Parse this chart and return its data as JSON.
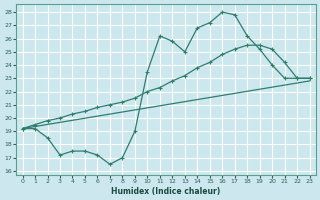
{
  "xlabel": "Humidex (Indice chaleur)",
  "bg_color": "#cce8ee",
  "line_color": "#2e7d6e",
  "grid_color": "#ffffff",
  "xlim": [
    -0.5,
    23.5
  ],
  "ylim": [
    15.7,
    28.6
  ],
  "yticks": [
    16,
    17,
    18,
    19,
    20,
    21,
    22,
    23,
    24,
    25,
    26,
    27,
    28
  ],
  "xticks": [
    0,
    1,
    2,
    3,
    4,
    5,
    6,
    7,
    8,
    9,
    10,
    11,
    12,
    13,
    14,
    15,
    16,
    17,
    18,
    19,
    20,
    21,
    22,
    23
  ],
  "line1_x": [
    0,
    1,
    2,
    3,
    4,
    5,
    6,
    7,
    8,
    9,
    10,
    11,
    12,
    13,
    14,
    15,
    16,
    17,
    18,
    19,
    20,
    21,
    22,
    23
  ],
  "line1_y": [
    19.2,
    19.2,
    18.5,
    17.2,
    17.5,
    17.5,
    17.2,
    16.5,
    17.0,
    19.0,
    23.5,
    26.2,
    25.8,
    25.0,
    26.8,
    27.2,
    28.0,
    27.8,
    26.2,
    25.2,
    24.0,
    23.0,
    23.0,
    23.0
  ],
  "line2_x": [
    0,
    1,
    2,
    3,
    4,
    5,
    6,
    7,
    8,
    9,
    10,
    11,
    12,
    13,
    14,
    15,
    16,
    17,
    18,
    19,
    20,
    21,
    22,
    23
  ],
  "line2_y": [
    19.2,
    19.5,
    19.8,
    20.0,
    20.3,
    20.5,
    20.8,
    21.0,
    21.2,
    21.5,
    22.0,
    22.3,
    22.8,
    23.2,
    23.8,
    24.2,
    24.8,
    25.2,
    25.5,
    25.5,
    25.2,
    24.2,
    23.0,
    23.0
  ],
  "line3_x": [
    0,
    23
  ],
  "line3_y": [
    19.2,
    22.8
  ]
}
